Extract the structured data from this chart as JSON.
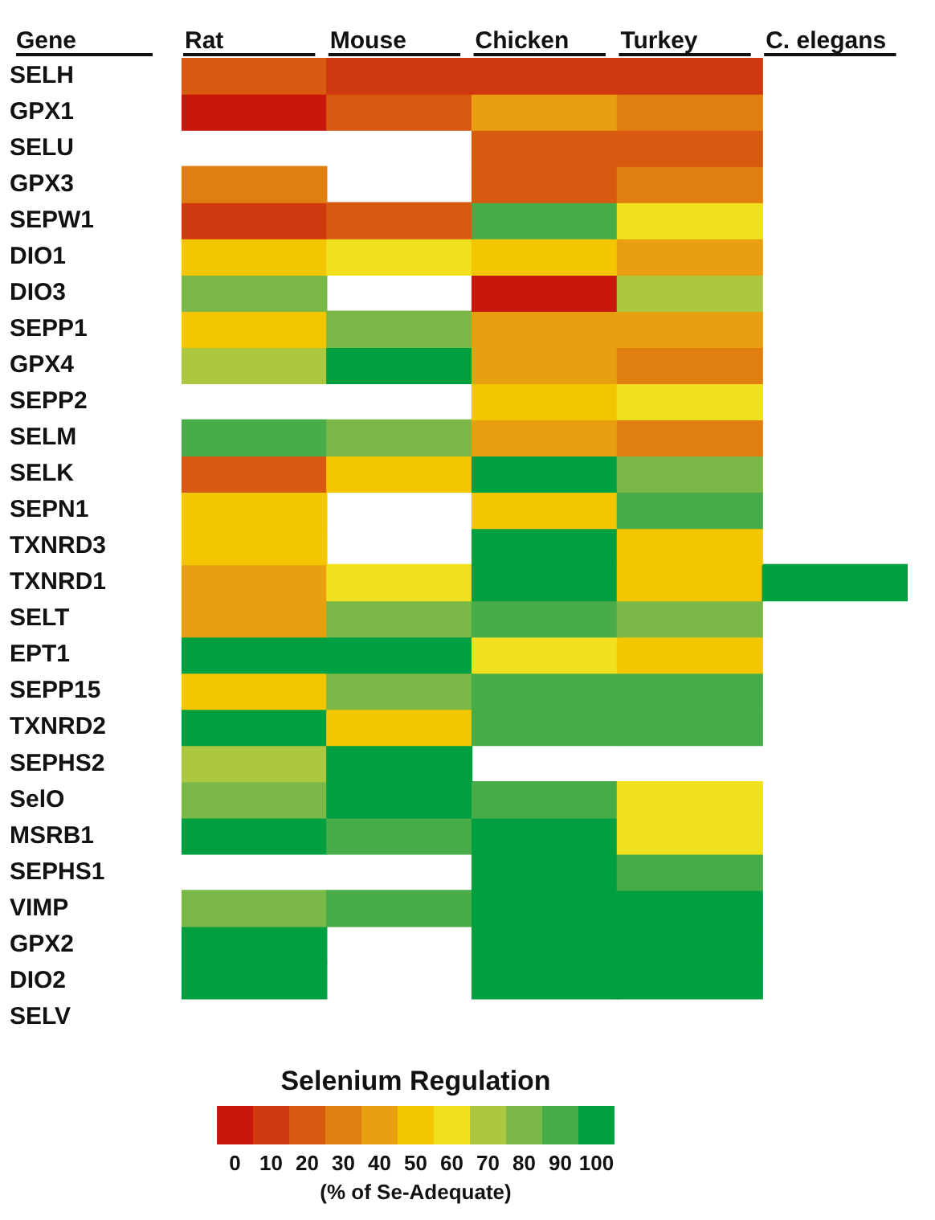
{
  "chart_data": {
    "type": "heatmap",
    "ylabel": "Gene",
    "clabel": "Selenium Regulation",
    "annotations": [
      "(% of Se-Adequate)"
    ],
    "categories": [
      "Rat",
      "Mouse",
      "Chicken",
      "Turkey",
      "C. elegans"
    ],
    "y_categories": [
      "SELH",
      "GPX1",
      "SELU",
      "GPX3",
      "SEPW1",
      "DIO1",
      "DIO3",
      "SEPP1",
      "GPX4",
      "SEPP2",
      "SELM",
      "SELK",
      "SEPN1",
      "TXNRD3",
      "TXNRD1",
      "SELT",
      "EPT1",
      "SEPP15",
      "TXNRD2",
      "SEPHS2",
      "SelO",
      "MSRB1",
      "SEPHS1",
      "VIMP",
      "GPX2",
      "DIO2",
      "SELV"
    ],
    "cells": [
      [
        20,
        10,
        10,
        10,
        null
      ],
      [
        0,
        20,
        40,
        30,
        null
      ],
      [
        null,
        null,
        20,
        20,
        null
      ],
      [
        30,
        null,
        20,
        30,
        null
      ],
      [
        10,
        20,
        90,
        60,
        null
      ],
      [
        50,
        60,
        50,
        40,
        null
      ],
      [
        80,
        null,
        0,
        70,
        null
      ],
      [
        50,
        80,
        40,
        40,
        null
      ],
      [
        70,
        100,
        40,
        30,
        null
      ],
      [
        null,
        null,
        50,
        60,
        null
      ],
      [
        90,
        80,
        40,
        30,
        null
      ],
      [
        20,
        50,
        100,
        80,
        null
      ],
      [
        50,
        null,
        50,
        90,
        null
      ],
      [
        50,
        null,
        100,
        50,
        null
      ],
      [
        40,
        60,
        100,
        50,
        100
      ],
      [
        40,
        80,
        90,
        80,
        null
      ],
      [
        100,
        100,
        60,
        50,
        null
      ],
      [
        50,
        80,
        90,
        90,
        null
      ],
      [
        100,
        50,
        90,
        90,
        null
      ],
      [
        70,
        100,
        null,
        null,
        null
      ],
      [
        80,
        100,
        90,
        60,
        null
      ],
      [
        100,
        90,
        100,
        60,
        null
      ],
      [
        null,
        null,
        100,
        90,
        null
      ],
      [
        80,
        90,
        100,
        100,
        null
      ],
      [
        100,
        null,
        100,
        100,
        null
      ],
      [
        100,
        null,
        100,
        100,
        null
      ],
      [
        null,
        null,
        null,
        null,
        null
      ]
    ],
    "clim": [
      -5,
      105
    ],
    "cticks": [
      0,
      10,
      20,
      30,
      40,
      50,
      60,
      70,
      80,
      90,
      100
    ]
  }
}
